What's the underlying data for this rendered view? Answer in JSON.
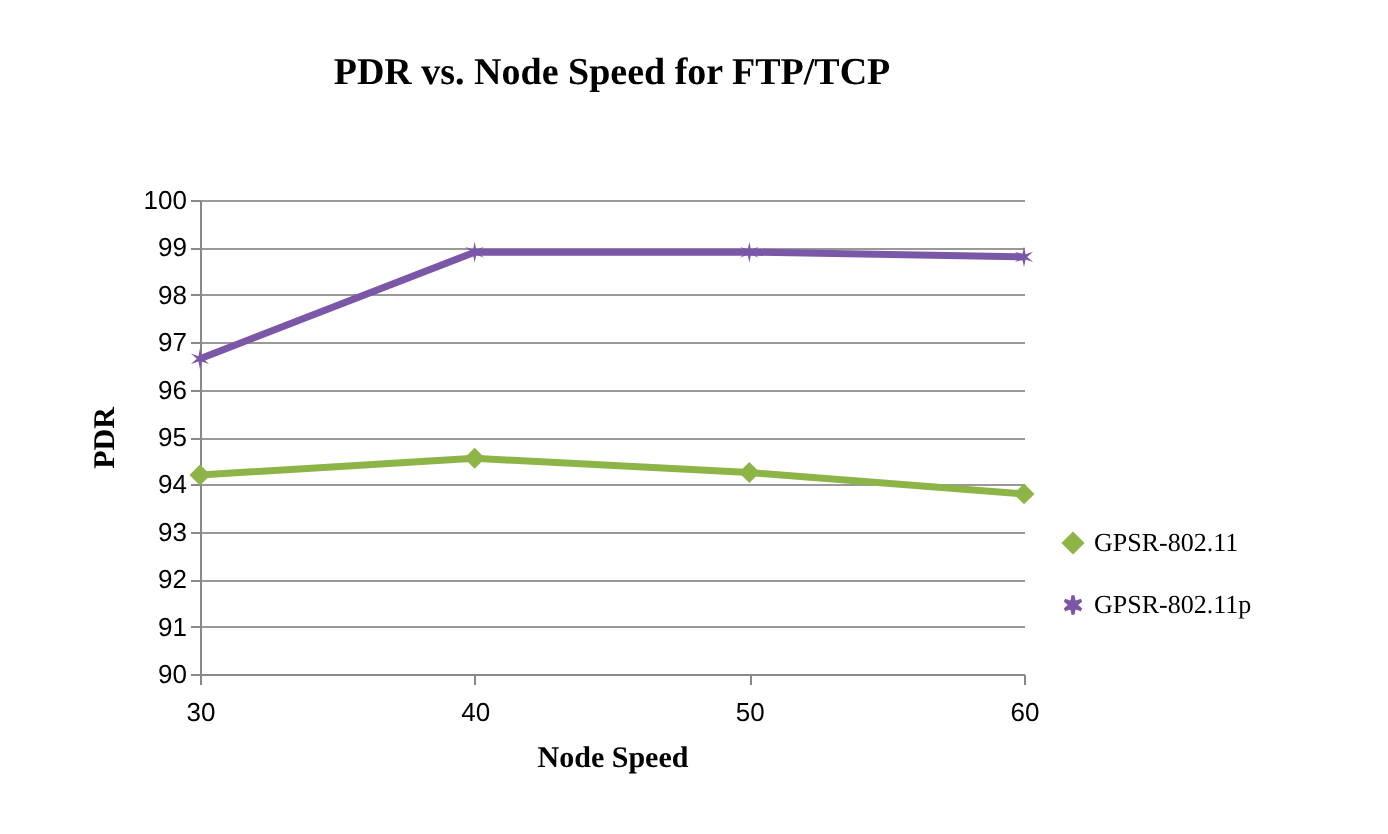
{
  "chart_data": {
    "type": "line",
    "title": "PDR vs. Node Speed for FTP/TCP",
    "xlabel": "Node Speed",
    "ylabel": "PDR",
    "categories": [
      "30",
      "40",
      "50",
      "60"
    ],
    "series": [
      {
        "name": "GPSR-802.11",
        "color": "#8db446",
        "marker": "diamond",
        "values": [
          94.2,
          94.55,
          94.25,
          93.8
        ]
      },
      {
        "name": "GPSR-802.11p",
        "color": "#7b57a8",
        "marker": "cross",
        "values": [
          96.65,
          98.9,
          98.9,
          98.8
        ]
      }
    ],
    "ylim": [
      90,
      100
    ],
    "yticks": [
      90,
      91,
      92,
      93,
      94,
      95,
      96,
      97,
      98,
      99,
      100
    ],
    "grid": "y",
    "legend": "right",
    "line_style": "solid"
  }
}
